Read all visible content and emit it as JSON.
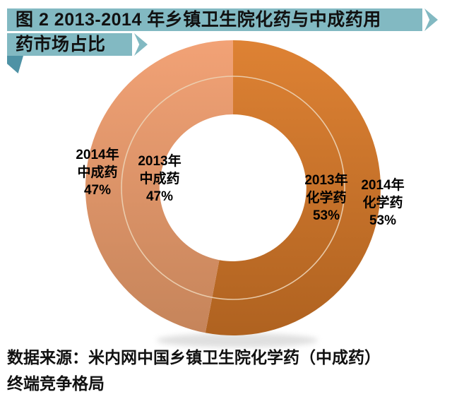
{
  "header": {
    "title_line1": "图 2  2013-2014 年乡镇卫生院化药与中成药用",
    "title_line2": "药市场占比",
    "banner_color": "#82B9C2",
    "fold_color": "#4E92A5"
  },
  "chart_data": {
    "type": "pie",
    "subtype": "nested-donut",
    "title": "2013-2014 年乡镇卫生院化药与中成药用药市场占比",
    "unit": "%",
    "categories": [
      "化学药",
      "中成药"
    ],
    "series": [
      {
        "name": "2013年",
        "ring": "inner",
        "values": [
          53,
          47
        ]
      },
      {
        "name": "2014年",
        "ring": "outer",
        "values": [
          53,
          47
        ]
      }
    ],
    "start_angle_deg": 0,
    "direction": "clockwise",
    "legend": "none (direct data labels on chart)",
    "style": {
      "chem_top": "#DE8234",
      "chem_bottom": "#AF6220",
      "tcm_top": "#F2A276",
      "tcm_bottom": "#C5845A",
      "ring_separator": "#ECD2B4"
    }
  },
  "labels": {
    "outer_left": "2014年\n中成药\n47%",
    "inner_left": "2013年\n中成药\n47%",
    "inner_right": "2013年\n化学药\n53%",
    "outer_right": "2014年\n化学药\n53%"
  },
  "source": {
    "line1": "数据来源：米内网中国乡镇卫生院化学药（中成药）",
    "line2": "终端竞争格局"
  }
}
